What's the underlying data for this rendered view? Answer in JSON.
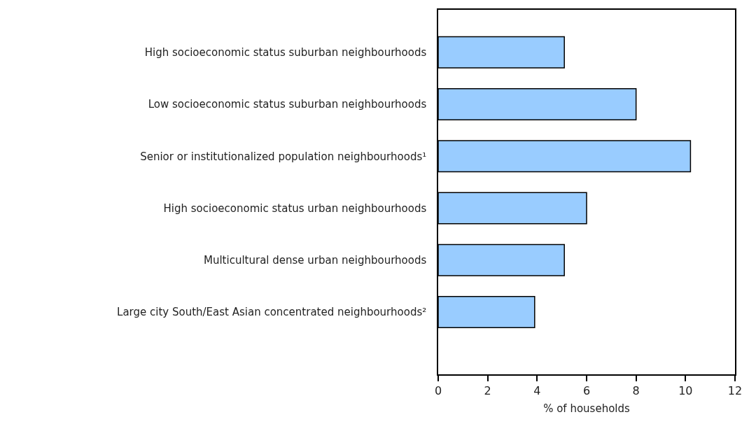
{
  "chart_data": {
    "type": "bar",
    "orientation": "horizontal",
    "xlabel": "% of households",
    "categories": [
      "High socioeconomic status suburban neighbourhoods",
      "Low socioeconomic status suburban neighbourhoods",
      "Senior or institutionalized population neighbourhoods¹",
      "High socioeconomic status urban neighbourhoods",
      "Multicultural dense urban neighbourhoods",
      "Large city South/East Asian concentrated neighbourhoods²"
    ],
    "values": [
      5.1,
      8.0,
      10.2,
      6.0,
      5.1,
      3.9
    ],
    "color": "#99ccff",
    "xlim": [
      0,
      12
    ],
    "xticks": [
      0,
      2,
      4,
      6,
      8,
      10,
      12
    ]
  }
}
